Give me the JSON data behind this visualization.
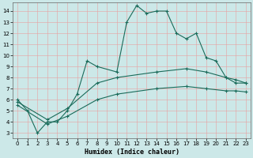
{
  "xlabel": "Humidex (Indice chaleur)",
  "bg_color": "#cce8e8",
  "grid_color": "#e8a0a0",
  "line_color": "#1a6b5a",
  "xlim": [
    -0.5,
    23.5
  ],
  "ylim": [
    2.5,
    14.8
  ],
  "xticks": [
    0,
    1,
    2,
    3,
    4,
    5,
    6,
    7,
    8,
    9,
    10,
    11,
    12,
    13,
    14,
    15,
    16,
    17,
    18,
    19,
    20,
    21,
    22,
    23
  ],
  "yticks": [
    3,
    4,
    5,
    6,
    7,
    8,
    9,
    10,
    11,
    12,
    13,
    14
  ],
  "main_line": {
    "x": [
      0,
      1,
      2,
      3,
      4,
      5,
      6,
      7,
      8,
      10,
      11,
      12,
      13,
      14,
      15,
      16,
      17,
      18,
      19,
      20,
      21,
      22,
      23
    ],
    "y": [
      6.0,
      5.0,
      3.0,
      4.0,
      4.0,
      5.0,
      6.5,
      9.5,
      9.0,
      8.5,
      13.0,
      14.5,
      13.8,
      14.0,
      14.0,
      12.0,
      11.5,
      12.0,
      9.8,
      9.5,
      8.0,
      7.5,
      7.5
    ]
  },
  "line2": {
    "x": [
      0,
      3,
      5,
      8,
      10,
      14,
      17,
      19,
      21,
      22,
      23
    ],
    "y": [
      5.8,
      4.2,
      5.2,
      7.5,
      8.0,
      8.5,
      8.8,
      8.5,
      8.0,
      7.8,
      7.5
    ]
  },
  "line3": {
    "x": [
      0,
      3,
      5,
      8,
      10,
      14,
      17,
      19,
      21,
      22,
      23
    ],
    "y": [
      5.5,
      3.8,
      4.5,
      6.0,
      6.5,
      7.0,
      7.2,
      7.0,
      6.8,
      6.8,
      6.7
    ]
  }
}
